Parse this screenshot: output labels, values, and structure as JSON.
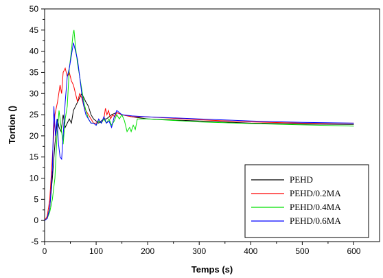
{
  "chart_data": {
    "type": "line",
    "title": "",
    "xlabel": "Temps (s)",
    "ylabel": "Tortion ()",
    "xlim": [
      0,
      650
    ],
    "ylim": [
      -5,
      50
    ],
    "x_ticks": [
      "0",
      "100",
      "200",
      "300",
      "400",
      "500",
      "600"
    ],
    "y_ticks": [
      "-5",
      "0",
      "5",
      "10",
      "15",
      "20",
      "25",
      "30",
      "35",
      "40",
      "45",
      "50"
    ],
    "grid": false,
    "legend_position": "bottom-right",
    "series": [
      {
        "name": "PEHD",
        "color": "#000000",
        "points": [
          [
            0,
            0
          ],
          [
            5,
            0.5
          ],
          [
            10,
            3
          ],
          [
            15,
            10
          ],
          [
            20,
            18
          ],
          [
            25,
            24
          ],
          [
            28,
            22
          ],
          [
            32,
            21
          ],
          [
            36,
            25
          ],
          [
            40,
            22
          ],
          [
            44,
            23
          ],
          [
            48,
            24
          ],
          [
            52,
            23
          ],
          [
            56,
            26
          ],
          [
            60,
            27
          ],
          [
            64,
            28
          ],
          [
            68,
            29
          ],
          [
            72,
            30
          ],
          [
            76,
            29
          ],
          [
            80,
            28
          ],
          [
            85,
            27
          ],
          [
            90,
            25
          ],
          [
            95,
            24
          ],
          [
            100,
            23.5
          ],
          [
            105,
            23
          ],
          [
            110,
            23.5
          ],
          [
            115,
            24
          ],
          [
            120,
            24
          ],
          [
            125,
            24.5
          ],
          [
            130,
            25
          ],
          [
            140,
            25.5
          ],
          [
            150,
            25
          ],
          [
            170,
            24.5
          ],
          [
            200,
            24
          ],
          [
            300,
            23.5
          ],
          [
            400,
            23
          ],
          [
            500,
            22.8
          ],
          [
            600,
            22.7
          ]
        ]
      },
      {
        "name": "PEHD/0.2MA",
        "color": "#ff0000",
        "points": [
          [
            0,
            0
          ],
          [
            5,
            1
          ],
          [
            10,
            5
          ],
          [
            15,
            15
          ],
          [
            20,
            25
          ],
          [
            25,
            28
          ],
          [
            30,
            32
          ],
          [
            33,
            30
          ],
          [
            36,
            35
          ],
          [
            40,
            36
          ],
          [
            44,
            34
          ],
          [
            48,
            35
          ],
          [
            52,
            33
          ],
          [
            56,
            32
          ],
          [
            60,
            30
          ],
          [
            64,
            28
          ],
          [
            68,
            30
          ],
          [
            72,
            29
          ],
          [
            76,
            27
          ],
          [
            80,
            26
          ],
          [
            85,
            25
          ],
          [
            90,
            24
          ],
          [
            95,
            23
          ],
          [
            100,
            23
          ],
          [
            105,
            23.5
          ],
          [
            110,
            23
          ],
          [
            115,
            24
          ],
          [
            118,
            26.5
          ],
          [
            121,
            25
          ],
          [
            124,
            26
          ],
          [
            128,
            24
          ],
          [
            132,
            25
          ],
          [
            136,
            24.5
          ],
          [
            140,
            25.5
          ],
          [
            150,
            25
          ],
          [
            170,
            24.5
          ],
          [
            200,
            24.5
          ],
          [
            300,
            23.8
          ],
          [
            400,
            23.3
          ],
          [
            500,
            23
          ],
          [
            600,
            23
          ]
        ]
      },
      {
        "name": "PEHD/0.4MA",
        "color": "#00e000",
        "points": [
          [
            0,
            0
          ],
          [
            5,
            0.5
          ],
          [
            10,
            2
          ],
          [
            15,
            5
          ],
          [
            20,
            10
          ],
          [
            24,
            20
          ],
          [
            28,
            26
          ],
          [
            32,
            22
          ],
          [
            36,
            18
          ],
          [
            40,
            24
          ],
          [
            44,
            27
          ],
          [
            48,
            36
          ],
          [
            52,
            40
          ],
          [
            55,
            44
          ],
          [
            57,
            45
          ],
          [
            60,
            41
          ],
          [
            64,
            37
          ],
          [
            68,
            34
          ],
          [
            72,
            31
          ],
          [
            76,
            28
          ],
          [
            80,
            26
          ],
          [
            85,
            24
          ],
          [
            90,
            23
          ],
          [
            95,
            23
          ],
          [
            100,
            22.5
          ],
          [
            105,
            23.5
          ],
          [
            110,
            23
          ],
          [
            115,
            24
          ],
          [
            120,
            23
          ],
          [
            125,
            24
          ],
          [
            130,
            22.5
          ],
          [
            135,
            23.5
          ],
          [
            140,
            25
          ],
          [
            145,
            24
          ],
          [
            150,
            25
          ],
          [
            155,
            23.5
          ],
          [
            160,
            21
          ],
          [
            165,
            22
          ],
          [
            168,
            21
          ],
          [
            172,
            22.5
          ],
          [
            176,
            21.5
          ],
          [
            180,
            24
          ],
          [
            200,
            24
          ],
          [
            300,
            23.3
          ],
          [
            400,
            22.9
          ],
          [
            500,
            22.6
          ],
          [
            600,
            22.3
          ]
        ]
      },
      {
        "name": "PEHD/0.6MA",
        "color": "#0000ff",
        "points": [
          [
            0,
            0
          ],
          [
            5,
            0.5
          ],
          [
            10,
            3
          ],
          [
            15,
            12
          ],
          [
            18,
            27
          ],
          [
            21,
            20
          ],
          [
            24,
            24
          ],
          [
            27,
            18
          ],
          [
            30,
            15
          ],
          [
            33,
            14.5
          ],
          [
            36,
            20
          ],
          [
            40,
            28
          ],
          [
            44,
            34
          ],
          [
            48,
            36
          ],
          [
            52,
            39
          ],
          [
            56,
            42
          ],
          [
            60,
            40
          ],
          [
            64,
            38
          ],
          [
            68,
            34
          ],
          [
            72,
            30
          ],
          [
            76,
            27
          ],
          [
            80,
            25
          ],
          [
            85,
            24
          ],
          [
            90,
            23
          ],
          [
            95,
            23
          ],
          [
            100,
            22.5
          ],
          [
            105,
            24
          ],
          [
            110,
            23
          ],
          [
            115,
            24.5
          ],
          [
            120,
            23
          ],
          [
            125,
            23.5
          ],
          [
            130,
            22
          ],
          [
            135,
            24.5
          ],
          [
            140,
            26
          ],
          [
            150,
            25
          ],
          [
            170,
            24.7
          ],
          [
            200,
            24.5
          ],
          [
            300,
            24
          ],
          [
            400,
            23.5
          ],
          [
            500,
            23.2
          ],
          [
            600,
            23
          ]
        ]
      }
    ]
  }
}
